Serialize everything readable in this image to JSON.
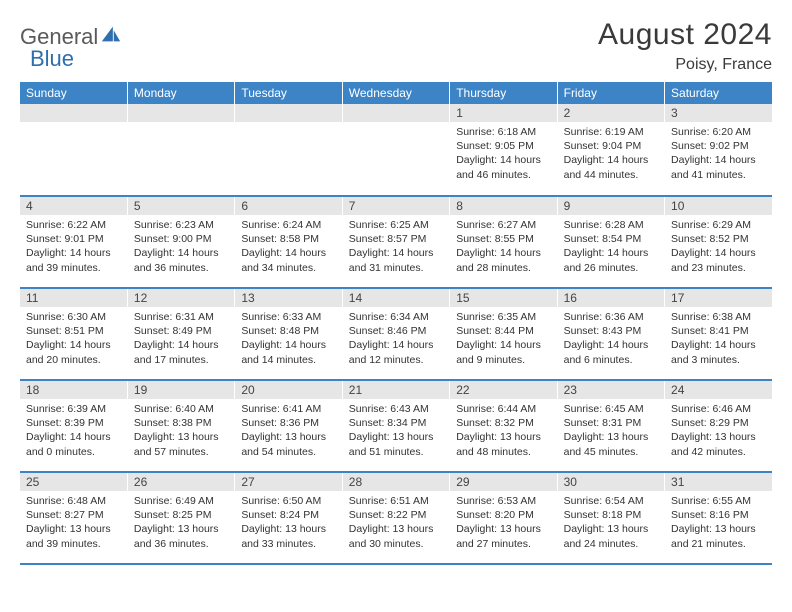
{
  "brand": {
    "word1": "General",
    "word2": "Blue"
  },
  "title": "August 2024",
  "location": "Poisy, France",
  "colors": {
    "header_bg": "#3d84c6",
    "header_fg": "#ffffff",
    "daynum_bg": "#e6e6e6",
    "row_border": "#3d84c6",
    "text": "#333333",
    "logo_gray": "#5a5a5a",
    "logo_blue": "#2f6fae"
  },
  "weekdays": [
    "Sunday",
    "Monday",
    "Tuesday",
    "Wednesday",
    "Thursday",
    "Friday",
    "Saturday"
  ],
  "weeks": [
    [
      null,
      null,
      null,
      null,
      {
        "num": "1",
        "sunrise": "Sunrise: 6:18 AM",
        "sunset": "Sunset: 9:05 PM",
        "day1": "Daylight: 14 hours",
        "day2": "and 46 minutes."
      },
      {
        "num": "2",
        "sunrise": "Sunrise: 6:19 AM",
        "sunset": "Sunset: 9:04 PM",
        "day1": "Daylight: 14 hours",
        "day2": "and 44 minutes."
      },
      {
        "num": "3",
        "sunrise": "Sunrise: 6:20 AM",
        "sunset": "Sunset: 9:02 PM",
        "day1": "Daylight: 14 hours",
        "day2": "and 41 minutes."
      }
    ],
    [
      {
        "num": "4",
        "sunrise": "Sunrise: 6:22 AM",
        "sunset": "Sunset: 9:01 PM",
        "day1": "Daylight: 14 hours",
        "day2": "and 39 minutes."
      },
      {
        "num": "5",
        "sunrise": "Sunrise: 6:23 AM",
        "sunset": "Sunset: 9:00 PM",
        "day1": "Daylight: 14 hours",
        "day2": "and 36 minutes."
      },
      {
        "num": "6",
        "sunrise": "Sunrise: 6:24 AM",
        "sunset": "Sunset: 8:58 PM",
        "day1": "Daylight: 14 hours",
        "day2": "and 34 minutes."
      },
      {
        "num": "7",
        "sunrise": "Sunrise: 6:25 AM",
        "sunset": "Sunset: 8:57 PM",
        "day1": "Daylight: 14 hours",
        "day2": "and 31 minutes."
      },
      {
        "num": "8",
        "sunrise": "Sunrise: 6:27 AM",
        "sunset": "Sunset: 8:55 PM",
        "day1": "Daylight: 14 hours",
        "day2": "and 28 minutes."
      },
      {
        "num": "9",
        "sunrise": "Sunrise: 6:28 AM",
        "sunset": "Sunset: 8:54 PM",
        "day1": "Daylight: 14 hours",
        "day2": "and 26 minutes."
      },
      {
        "num": "10",
        "sunrise": "Sunrise: 6:29 AM",
        "sunset": "Sunset: 8:52 PM",
        "day1": "Daylight: 14 hours",
        "day2": "and 23 minutes."
      }
    ],
    [
      {
        "num": "11",
        "sunrise": "Sunrise: 6:30 AM",
        "sunset": "Sunset: 8:51 PM",
        "day1": "Daylight: 14 hours",
        "day2": "and 20 minutes."
      },
      {
        "num": "12",
        "sunrise": "Sunrise: 6:31 AM",
        "sunset": "Sunset: 8:49 PM",
        "day1": "Daylight: 14 hours",
        "day2": "and 17 minutes."
      },
      {
        "num": "13",
        "sunrise": "Sunrise: 6:33 AM",
        "sunset": "Sunset: 8:48 PM",
        "day1": "Daylight: 14 hours",
        "day2": "and 14 minutes."
      },
      {
        "num": "14",
        "sunrise": "Sunrise: 6:34 AM",
        "sunset": "Sunset: 8:46 PM",
        "day1": "Daylight: 14 hours",
        "day2": "and 12 minutes."
      },
      {
        "num": "15",
        "sunrise": "Sunrise: 6:35 AM",
        "sunset": "Sunset: 8:44 PM",
        "day1": "Daylight: 14 hours",
        "day2": "and 9 minutes."
      },
      {
        "num": "16",
        "sunrise": "Sunrise: 6:36 AM",
        "sunset": "Sunset: 8:43 PM",
        "day1": "Daylight: 14 hours",
        "day2": "and 6 minutes."
      },
      {
        "num": "17",
        "sunrise": "Sunrise: 6:38 AM",
        "sunset": "Sunset: 8:41 PM",
        "day1": "Daylight: 14 hours",
        "day2": "and 3 minutes."
      }
    ],
    [
      {
        "num": "18",
        "sunrise": "Sunrise: 6:39 AM",
        "sunset": "Sunset: 8:39 PM",
        "day1": "Daylight: 14 hours",
        "day2": "and 0 minutes."
      },
      {
        "num": "19",
        "sunrise": "Sunrise: 6:40 AM",
        "sunset": "Sunset: 8:38 PM",
        "day1": "Daylight: 13 hours",
        "day2": "and 57 minutes."
      },
      {
        "num": "20",
        "sunrise": "Sunrise: 6:41 AM",
        "sunset": "Sunset: 8:36 PM",
        "day1": "Daylight: 13 hours",
        "day2": "and 54 minutes."
      },
      {
        "num": "21",
        "sunrise": "Sunrise: 6:43 AM",
        "sunset": "Sunset: 8:34 PM",
        "day1": "Daylight: 13 hours",
        "day2": "and 51 minutes."
      },
      {
        "num": "22",
        "sunrise": "Sunrise: 6:44 AM",
        "sunset": "Sunset: 8:32 PM",
        "day1": "Daylight: 13 hours",
        "day2": "and 48 minutes."
      },
      {
        "num": "23",
        "sunrise": "Sunrise: 6:45 AM",
        "sunset": "Sunset: 8:31 PM",
        "day1": "Daylight: 13 hours",
        "day2": "and 45 minutes."
      },
      {
        "num": "24",
        "sunrise": "Sunrise: 6:46 AM",
        "sunset": "Sunset: 8:29 PM",
        "day1": "Daylight: 13 hours",
        "day2": "and 42 minutes."
      }
    ],
    [
      {
        "num": "25",
        "sunrise": "Sunrise: 6:48 AM",
        "sunset": "Sunset: 8:27 PM",
        "day1": "Daylight: 13 hours",
        "day2": "and 39 minutes."
      },
      {
        "num": "26",
        "sunrise": "Sunrise: 6:49 AM",
        "sunset": "Sunset: 8:25 PM",
        "day1": "Daylight: 13 hours",
        "day2": "and 36 minutes."
      },
      {
        "num": "27",
        "sunrise": "Sunrise: 6:50 AM",
        "sunset": "Sunset: 8:24 PM",
        "day1": "Daylight: 13 hours",
        "day2": "and 33 minutes."
      },
      {
        "num": "28",
        "sunrise": "Sunrise: 6:51 AM",
        "sunset": "Sunset: 8:22 PM",
        "day1": "Daylight: 13 hours",
        "day2": "and 30 minutes."
      },
      {
        "num": "29",
        "sunrise": "Sunrise: 6:53 AM",
        "sunset": "Sunset: 8:20 PM",
        "day1": "Daylight: 13 hours",
        "day2": "and 27 minutes."
      },
      {
        "num": "30",
        "sunrise": "Sunrise: 6:54 AM",
        "sunset": "Sunset: 8:18 PM",
        "day1": "Daylight: 13 hours",
        "day2": "and 24 minutes."
      },
      {
        "num": "31",
        "sunrise": "Sunrise: 6:55 AM",
        "sunset": "Sunset: 8:16 PM",
        "day1": "Daylight: 13 hours",
        "day2": "and 21 minutes."
      }
    ]
  ]
}
